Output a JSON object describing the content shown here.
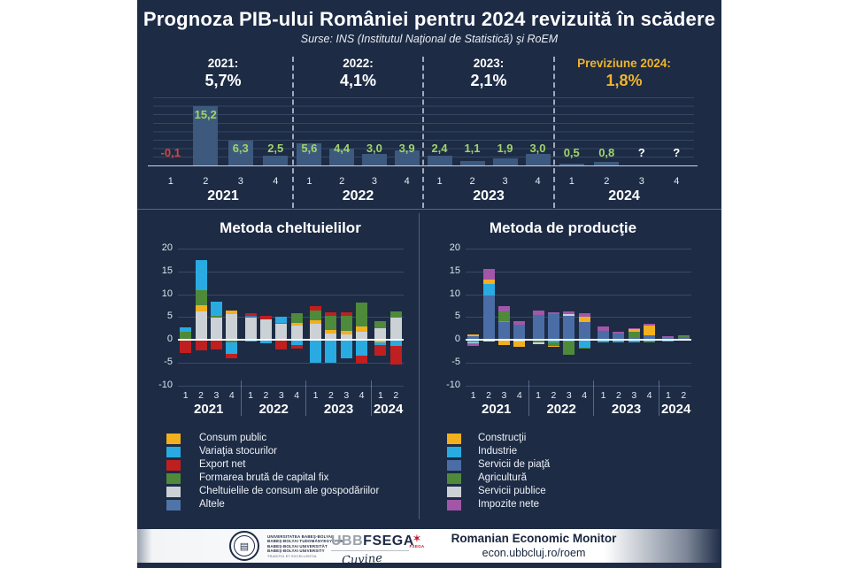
{
  "header": {
    "title": "Prognoza PIB-ului României pentru 2024 revizuită în scădere",
    "subtitle": "Surse:  INS (Institutul Naţional de Statistică) şi RoEM",
    "highlight_color": "#f0b429",
    "summary": [
      {
        "label": "2021:",
        "value": "5,7%",
        "highlight": false
      },
      {
        "label": "2022:",
        "value": "4,1%",
        "highlight": false
      },
      {
        "label": "2023:",
        "value": "2,1%",
        "highlight": false
      },
      {
        "label": "Previziune 2024:",
        "value": "1,8%",
        "highlight": true
      }
    ]
  },
  "colors": {
    "background": "#1d2b45",
    "bar": "#3d5a7e",
    "grid": "rgba(140,170,215,0.25)",
    "axis": "#cdd5e0",
    "label_positive": "#a0d468",
    "label_negative": "#d4453c",
    "accent_gold": "#f0b429"
  },
  "chart_data": [
    {
      "id": "quarterly-gdp",
      "type": "bar",
      "title": "Prognoza PIB-ului României pentru 2024 revizuită în scădere",
      "bar_color": "#3d5a7e",
      "quarter_ticks": [
        "1",
        "2",
        "3",
        "4",
        "1",
        "2",
        "3",
        "4",
        "1",
        "2",
        "3",
        "4",
        "1",
        "2",
        "3",
        "4"
      ],
      "year_groups": [
        {
          "label": "2021",
          "quarters": 4
        },
        {
          "label": "2022",
          "quarters": 4
        },
        {
          "label": "2023",
          "quarters": 4
        },
        {
          "label": "2024",
          "quarters": 4
        }
      ],
      "values": [
        -0.1,
        15.2,
        6.3,
        2.5,
        5.6,
        4.4,
        3.0,
        3.9,
        2.4,
        1.1,
        1.9,
        3.0,
        0.5,
        0.8,
        null,
        null
      ],
      "labels": [
        "-0,1",
        "15,2",
        "6,3",
        "2,5",
        "5,6",
        "4,4",
        "3,0",
        "3,9",
        "2,4",
        "1,1",
        "1,9",
        "3,0",
        "0,5",
        "0,8",
        "?",
        "?"
      ],
      "annual": {
        "2021": "5,7%",
        "2022": "4,1%",
        "2023": "2,1%",
        "2024 (previziune)": "1,8%"
      }
    },
    {
      "id": "expenditure-method",
      "type": "stacked-bar",
      "title": "Metoda cheltuielilor",
      "ylim": [
        -10,
        20
      ],
      "yticks": [
        20,
        15,
        10,
        5,
        0,
        -5,
        -10
      ],
      "quarter_ticks": [
        "1",
        "2",
        "3",
        "4",
        "1",
        "2",
        "3",
        "4",
        "1",
        "2",
        "3",
        "4",
        "1",
        "2"
      ],
      "year_groups": [
        {
          "label": "2021",
          "quarters": 4
        },
        {
          "label": "2022",
          "quarters": 4
        },
        {
          "label": "2023",
          "quarters": 4
        },
        {
          "label": "2024",
          "quarters": 2
        }
      ],
      "stack_order": [
        4,
        0,
        3,
        1,
        5,
        2
      ],
      "series": [
        {
          "name": "Consum public",
          "color": "#f2b01e",
          "values": [
            -0.2,
            1.2,
            0,
            0.8,
            0,
            0,
            0,
            0.4,
            0.9,
            0.8,
            0.9,
            1.2,
            -0.6,
            0
          ]
        },
        {
          "name": "Variaţia stocurilor",
          "color": "#29abe2",
          "values": [
            1.0,
            6.6,
            3.2,
            -2.6,
            -0.3,
            -0.8,
            1.4,
            -1.2,
            -5.0,
            -5.0,
            -4.1,
            -3.4,
            -0.5,
            -1.4
          ]
        },
        {
          "name": "Export net",
          "color": "#c01f1f",
          "values": [
            -2.7,
            -2.3,
            -2.1,
            -0.8,
            0.6,
            0.7,
            -2.1,
            -0.7,
            0.9,
            0.9,
            0.8,
            -1.8,
            -2.4,
            -4.1
          ]
        },
        {
          "name": "Formarea brută de capital fix",
          "color": "#4e8a3a",
          "values": [
            1.6,
            3.4,
            0.4,
            -0.6,
            0,
            0,
            0.3,
            2.2,
            2.2,
            3.0,
            3.2,
            5.2,
            1.5,
            1.4
          ]
        },
        {
          "name": "Cheltuielile de consum ale gospodăriilor",
          "color": "#ccd1d6",
          "values": [
            0.2,
            6.3,
            4.8,
            5.7,
            4.9,
            4.5,
            3.4,
            3.2,
            3.4,
            1.4,
            1.1,
            1.8,
            2.5,
            4.9
          ]
        },
        {
          "name": "Altele",
          "color": "#4f74a8",
          "values": [
            0,
            0,
            0,
            0,
            0.4,
            0,
            0,
            0,
            0,
            0,
            0,
            0,
            0,
            0
          ]
        }
      ]
    },
    {
      "id": "production-method",
      "type": "stacked-bar",
      "title": "Metoda de producţie",
      "ylim": [
        -10,
        20
      ],
      "yticks": [
        20,
        15,
        10,
        5,
        0,
        -5,
        -10
      ],
      "quarter_ticks": [
        "1",
        "2",
        "3",
        "4",
        "1",
        "2",
        "3",
        "4",
        "1",
        "2",
        "3",
        "4",
        "1",
        "2"
      ],
      "year_groups": [
        {
          "label": "2021",
          "quarters": 4
        },
        {
          "label": "2022",
          "quarters": 4
        },
        {
          "label": "2023",
          "quarters": 4
        },
        {
          "label": "2024",
          "quarters": 2
        }
      ],
      "stack_order": [
        2,
        1,
        3,
        4,
        0,
        5
      ],
      "series": [
        {
          "name": "Construcţii",
          "color": "#f2b01e",
          "values": [
            0.5,
            1.0,
            -1.0,
            -1.2,
            0,
            -0.2,
            0,
            1.1,
            0,
            0,
            0.5,
            2.3,
            0,
            0
          ]
        },
        {
          "name": "Industrie",
          "color": "#29abe2",
          "values": [
            -0.6,
            2.4,
            0.2,
            0,
            0,
            -0.6,
            -0.3,
            -1.7,
            -0.5,
            -0.6,
            -0.6,
            -0.3,
            -0.3,
            -0.2
          ]
        },
        {
          "name": "Servicii de piaţă",
          "color": "#4a6da5",
          "values": [
            0.7,
            9.8,
            3.9,
            3.3,
            5.4,
            5.6,
            5.2,
            3.9,
            2.0,
            1.3,
            0.4,
            0.9,
            0.4,
            0.5
          ]
        },
        {
          "name": "Agricultură",
          "color": "#4e8a3a",
          "values": [
            0,
            0,
            2.1,
            0,
            -0.6,
            -0.8,
            -3.0,
            -0.3,
            0,
            0,
            1.4,
            -0.2,
            0,
            0.3
          ]
        },
        {
          "name": "Servicii publice",
          "color": "#ccd1d6",
          "values": [
            -0.2,
            -0.4,
            -0.1,
            -0.3,
            -0.3,
            0,
            0.4,
            0,
            0,
            0,
            0,
            0,
            0,
            0
          ]
        },
        {
          "name": "Impozite nete",
          "color": "#a156a8",
          "values": [
            -0.5,
            2.4,
            1.2,
            0.7,
            1.1,
            0.4,
            0.7,
            0.9,
            0.9,
            0.4,
            0.2,
            0.3,
            0.4,
            0.2
          ]
        }
      ]
    }
  ],
  "footer": {
    "brand": "Romanian Economic Monitor",
    "url": "econ.ubbcluj.ro/roem",
    "university_lines": [
      "Universitatea Babeş-Bolyai",
      "Babeş-Bolyai Tudományegyetem",
      "Babeş-Bolyai Universität",
      "Babeş-Bolyai University",
      "Traditio et Excellentia"
    ],
    "fsega": {
      "ubb": "UBB",
      "fsega": "FSEGA",
      "script": "Cuvine",
      "emblem": "FSEGA"
    }
  }
}
